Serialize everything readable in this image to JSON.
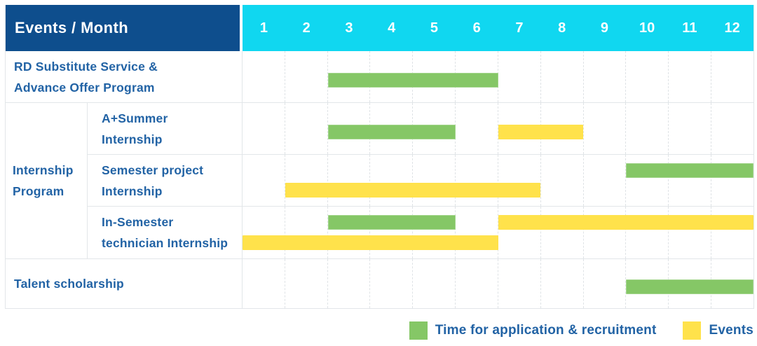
{
  "title": "Events / Month",
  "colors": {
    "header_bg": "#0e4e8d",
    "months_bg": "#10d7f0",
    "application_green": "#85c766",
    "event_yellow": "#ffe24b",
    "label_text_blue": "#2263a5"
  },
  "header": {
    "corner_label": "Events / Month",
    "months": [
      "1",
      "2",
      "3",
      "4",
      "5",
      "6",
      "7",
      "8",
      "9",
      "10",
      "11",
      "12"
    ]
  },
  "legend": [
    {
      "series": "application",
      "label": "Time for application & recruitment"
    },
    {
      "series": "event",
      "label": "Events"
    }
  ],
  "chart_data": {
    "type": "gantt",
    "title": "Events / Month",
    "x_axis": {
      "unit": "month",
      "ticks": [
        1,
        2,
        3,
        4,
        5,
        6,
        7,
        8,
        9,
        10,
        11,
        12
      ],
      "range": [
        1,
        12
      ]
    },
    "legend_position": "bottom-right",
    "grid": "dashed-vertical-month-lines",
    "series": [
      {
        "id": "application",
        "name": "Time for application & recruitment",
        "color": "#85c766"
      },
      {
        "id": "event",
        "name": "Events",
        "color": "#ffe24b"
      }
    ],
    "rows": [
      {
        "group": "",
        "label": "RD Substitute Service & Advance Offer Program",
        "label_lines": [
          "RD Substitute Service &",
          "Advance Offer Program"
        ],
        "lanes": 1,
        "bars": [
          {
            "series": "application",
            "start_month": 3,
            "end_month": 6,
            "lane": 0
          }
        ]
      },
      {
        "group": "Internship Program",
        "label": "A+Summer Internship",
        "label_lines": [
          "A+Summer",
          "Internship"
        ],
        "lanes": 1,
        "bars": [
          {
            "series": "application",
            "start_month": 3,
            "end_month": 5,
            "lane": 0
          },
          {
            "series": "event",
            "start_month": 7,
            "end_month": 8,
            "lane": 0
          }
        ]
      },
      {
        "group": "Internship Program",
        "label": "Semester project Internship",
        "label_lines": [
          "Semester project",
          "Internship"
        ],
        "lanes": 2,
        "bars": [
          {
            "series": "application",
            "start_month": 10,
            "end_month": 12,
            "lane": 0
          },
          {
            "series": "event",
            "start_month": 2,
            "end_month": 7,
            "lane": 1
          }
        ]
      },
      {
        "group": "Internship Program",
        "label": "In-Semester technician Internship",
        "label_lines": [
          "In-Semester",
          "technician Internship"
        ],
        "lanes": 2,
        "bars": [
          {
            "series": "application",
            "start_month": 3,
            "end_month": 5,
            "lane": 0
          },
          {
            "series": "event",
            "start_month": 7,
            "end_month": 12,
            "lane": 0
          },
          {
            "series": "event",
            "start_month": 1,
            "end_month": 6,
            "lane": 1
          }
        ]
      },
      {
        "group": "",
        "label": "Talent scholarship",
        "label_lines": [
          "Talent scholarship"
        ],
        "lanes": 1,
        "bars": [
          {
            "series": "application",
            "start_month": 10,
            "end_month": 12,
            "lane": 0
          }
        ]
      }
    ]
  }
}
